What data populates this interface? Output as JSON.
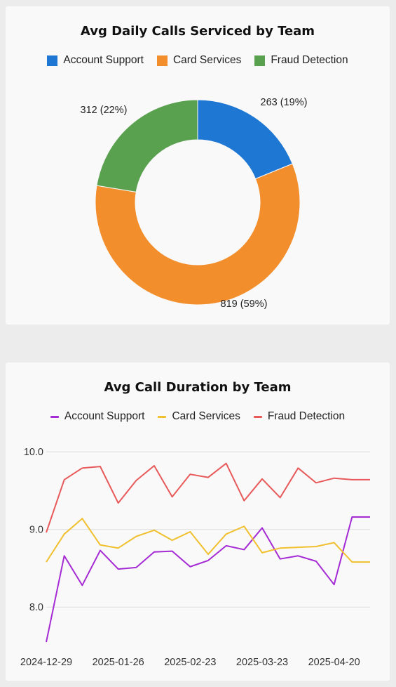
{
  "charts": {
    "donut": {
      "title": "Avg Daily Calls Serviced by Team"
    },
    "line": {
      "title": "Avg Call Duration by Team"
    }
  },
  "legend": {
    "account_support": "Account Support",
    "card_services": "Card Services",
    "fraud_detection": "Fraud Detection"
  },
  "colors": {
    "account_support_donut": "#1f77d4",
    "card_services_donut": "#f28e2b",
    "fraud_detection_donut": "#59a14f",
    "account_support_line": "#a52bd4",
    "card_services_line": "#f0c02e",
    "fraud_detection_line": "#e8595a"
  },
  "chart_data": [
    {
      "type": "pie",
      "title": "Avg Daily Calls Serviced by Team",
      "donut": true,
      "legend_position": "top",
      "slices": [
        {
          "name": "Account Support",
          "value": 263,
          "percent": 19,
          "label": "263 (19%)"
        },
        {
          "name": "Card Services",
          "value": 819,
          "percent": 59,
          "label": "819 (59%)"
        },
        {
          "name": "Fraud Detection",
          "value": 312,
          "percent": 22,
          "label": "312 (22%)"
        }
      ]
    },
    {
      "type": "line",
      "title": "Avg Call Duration by Team",
      "legend_position": "top",
      "grid": true,
      "x": [
        "2024-12-29",
        "2025-01-05",
        "2025-01-12",
        "2025-01-19",
        "2025-01-26",
        "2025-02-02",
        "2025-02-09",
        "2025-02-16",
        "2025-02-23",
        "2025-03-02",
        "2025-03-09",
        "2025-03-16",
        "2025-03-23",
        "2025-03-30",
        "2025-04-06",
        "2025-04-13",
        "2025-04-20",
        "2025-04-27",
        "2025-05-04"
      ],
      "x_tick_labels": [
        "2024-12-29",
        "2025-01-26",
        "2025-02-23",
        "2025-03-23",
        "2025-04-20"
      ],
      "y_ticks": [
        8.0,
        9.0,
        10.0
      ],
      "y_tick_labels": [
        "8.0",
        "9.0",
        "10.0"
      ],
      "ylim": [
        7.55,
        10.2
      ],
      "series": [
        {
          "name": "Account Support",
          "values": [
            7.55,
            8.66,
            8.28,
            8.73,
            8.49,
            8.51,
            8.71,
            8.72,
            8.52,
            8.6,
            8.79,
            8.74,
            9.02,
            8.62,
            8.66,
            8.59,
            8.29,
            9.16,
            9.16
          ]
        },
        {
          "name": "Card Services",
          "values": [
            8.58,
            8.94,
            9.14,
            8.8,
            8.76,
            8.91,
            8.99,
            8.86,
            8.97,
            8.68,
            8.94,
            9.04,
            8.7,
            8.76,
            8.77,
            8.78,
            8.83,
            8.58,
            8.58
          ]
        },
        {
          "name": "Fraud Detection",
          "values": [
            8.96,
            9.64,
            9.79,
            9.81,
            9.34,
            9.63,
            9.82,
            9.42,
            9.71,
            9.67,
            9.85,
            9.37,
            9.65,
            9.41,
            9.79,
            9.6,
            9.66,
            9.64,
            9.64
          ]
        }
      ]
    }
  ]
}
